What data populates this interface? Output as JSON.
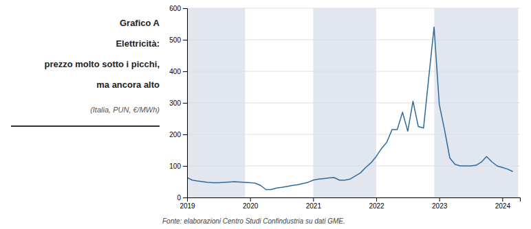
{
  "chart_data": {
    "type": "line",
    "title": [
      "Grafico A",
      "Elettricità:",
      "prezzo molto sotto i picchi,",
      "ma ancora alto"
    ],
    "subtitle": "(Italia, PUN, €/MWh)",
    "footnote": "Fonte: elaborazioni Centro Studi Confindustria su dati GME.",
    "color": "#2E6A9E",
    "shaded_color": "#d5dce8",
    "shaded_regions": [
      [
        2019.0,
        2019.92
      ],
      [
        2021.0,
        2022.0
      ],
      [
        2022.92,
        2024.25
      ]
    ],
    "x": [
      2019.0,
      2019.083,
      2019.167,
      2019.25,
      2019.333,
      2019.417,
      2019.5,
      2019.583,
      2019.667,
      2019.75,
      2019.833,
      2019.917,
      2020.0,
      2020.083,
      2020.167,
      2020.25,
      2020.333,
      2020.417,
      2020.5,
      2020.583,
      2020.667,
      2020.75,
      2020.833,
      2020.917,
      2021.0,
      2021.083,
      2021.167,
      2021.25,
      2021.333,
      2021.417,
      2021.5,
      2021.583,
      2021.667,
      2021.75,
      2021.833,
      2021.917,
      2022.0,
      2022.083,
      2022.167,
      2022.25,
      2022.333,
      2022.417,
      2022.5,
      2022.583,
      2022.667,
      2022.75,
      2022.833,
      2022.917,
      2023.0,
      2023.083,
      2023.167,
      2023.25,
      2023.333,
      2023.417,
      2023.5,
      2023.583,
      2023.667,
      2023.75,
      2023.833,
      2023.917,
      2024.0,
      2024.083,
      2024.167
    ],
    "values": [
      63,
      55,
      52,
      50,
      48,
      47,
      47,
      48,
      49,
      50,
      49,
      48,
      47,
      45,
      38,
      25,
      25,
      30,
      32,
      35,
      38,
      40,
      44,
      48,
      55,
      58,
      60,
      62,
      63,
      55,
      55,
      58,
      68,
      78,
      95,
      110,
      130,
      155,
      175,
      215,
      215,
      270,
      210,
      305,
      225,
      220,
      380,
      540,
      295,
      215,
      125,
      105,
      100,
      100,
      100,
      102,
      112,
      130,
      113,
      100,
      95,
      90,
      82
    ],
    "xlim": [
      2019.0,
      2024.28
    ],
    "xticks": [
      2019,
      2020,
      2021,
      2022,
      2023,
      2024
    ],
    "ylim": [
      0,
      600
    ],
    "yticks": [
      0,
      100,
      200,
      300,
      400,
      500,
      600
    ],
    "grid": true
  }
}
